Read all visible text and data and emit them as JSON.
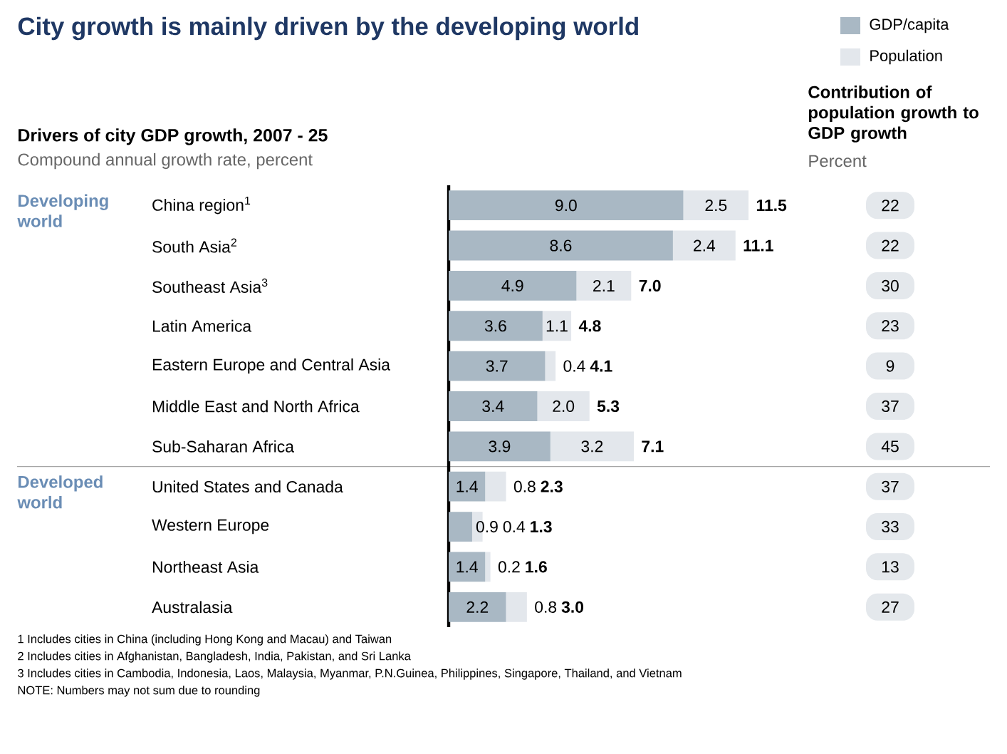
{
  "chart_data": {
    "type": "bar",
    "orientation": "horizontal",
    "stacked": true,
    "legend": "top right",
    "title": "City growth is mainly driven by the developing world",
    "subtitle": "Drivers of city GDP growth, 2007 - 25",
    "categories": [
      "China region$^{1}$",
      "South Asia$^{2}$",
      "Southeast Asia$^{3}$",
      "Latin America",
      "Eastern Europe and Central Asia",
      "Middle East and North Africa",
      "Sub-Saharan Africa",
      "United States and Canada",
      "Western Europe",
      "Northeast Asia",
      "Australasia"
    ],
    "series": [
      {
        "name": "GDP/capita",
        "color": "#a9b8c4",
        "values": [
          9.0,
          8.6,
          4.9,
          3.6,
          3.7,
          3.4,
          3.9,
          1.4,
          0.9,
          1.4,
          2.2
        ],
        "value_labels": [
          "9.0",
          "8.6",
          "4.9",
          "3.6",
          "3.7",
          "3.4",
          "3.9",
          "1.4",
          "0.9",
          "1.4",
          "2.2"
        ]
      },
      {
        "name": "Population",
        "color": "#e3e7ec",
        "values": [
          2.5,
          2.4,
          2.1,
          1.1,
          0.4,
          2.0,
          3.2,
          0.8,
          0.4,
          0.2,
          0.8
        ],
        "value_labels": [
          "2.5",
          "2.4",
          "2.1",
          "1.1",
          "0.4",
          "2.0",
          "3.2",
          "0.8",
          "0.4",
          "0.2",
          "0.8"
        ]
      }
    ],
    "totals": [
      "11.5",
      "11.1",
      "7.0",
      "4.8",
      "4.1",
      "5.3",
      "7.1",
      "2.3",
      "1.3",
      "1.6",
      "3.0"
    ],
    "annotations": [
      "Compound annual growth rate, percent",
      "Developing world",
      "Developed world",
      "Contribution of population growth to GDP growth",
      "Percent",
      "22",
      "22",
      "30",
      "23",
      "9",
      "37",
      "45",
      "37",
      "33",
      "13",
      "27",
      "1 Includes cities in China (including Hong Kong and Macau) and Taiwan",
      "2 Includes cities in Afghanistan, Bangladesh, India, Pakistan, and Sri Lanka",
      "3 Includes cities in Cambodia, Indonesia, Laos, Malaysia, Myanmar, P.N.Guinea, Philippines, Singapore, Thailand, and Vietnam",
      "NOTE: Numbers may not sum due to rounding"
    ]
  }
}
